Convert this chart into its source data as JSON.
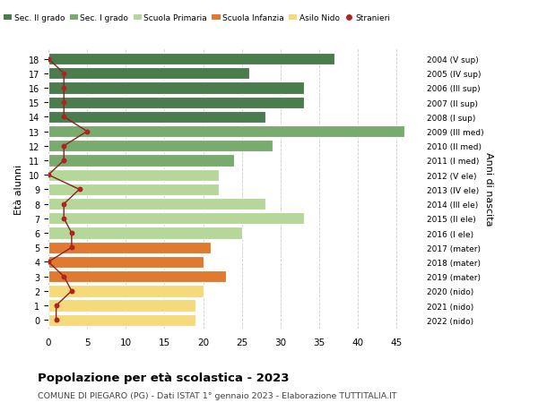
{
  "ages": [
    18,
    17,
    16,
    15,
    14,
    13,
    12,
    11,
    10,
    9,
    8,
    7,
    6,
    5,
    4,
    3,
    2,
    1,
    0
  ],
  "right_labels": [
    "2004 (V sup)",
    "2005 (IV sup)",
    "2006 (III sup)",
    "2007 (II sup)",
    "2008 (I sup)",
    "2009 (III med)",
    "2010 (II med)",
    "2011 (I med)",
    "2012 (V ele)",
    "2013 (IV ele)",
    "2014 (III ele)",
    "2015 (II ele)",
    "2016 (I ele)",
    "2017 (mater)",
    "2018 (mater)",
    "2019 (mater)",
    "2020 (nido)",
    "2021 (nido)",
    "2022 (nido)"
  ],
  "bar_values": [
    37,
    26,
    33,
    33,
    28,
    46,
    29,
    24,
    22,
    22,
    28,
    33,
    25,
    21,
    20,
    23,
    20,
    19,
    19
  ],
  "bar_colors": [
    "#4a7c4e",
    "#4a7c4e",
    "#4a7c4e",
    "#4a7c4e",
    "#4a7c4e",
    "#7aab6e",
    "#7aab6e",
    "#7aab6e",
    "#b5d89a",
    "#b5d89a",
    "#b5d89a",
    "#b5d89a",
    "#b5d89a",
    "#e07a30",
    "#e07a30",
    "#e07a30",
    "#f5d97a",
    "#f5d97a",
    "#f5d97a"
  ],
  "stranieri_values": [
    0,
    2,
    2,
    2,
    2,
    5,
    2,
    2,
    0,
    4,
    2,
    2,
    3,
    3,
    0,
    2,
    3,
    1,
    1
  ],
  "legend_labels": [
    "Sec. II grado",
    "Sec. I grado",
    "Scuola Primaria",
    "Scuola Infanzia",
    "Asilo Nido",
    "Stranieri"
  ],
  "legend_colors": [
    "#4a7c4e",
    "#7aab6e",
    "#b5d89a",
    "#e07a30",
    "#f5d97a",
    "#b22222"
  ],
  "ylabel": "Età alunni",
  "right_ylabel": "Anni di nascita",
  "title": "Popolazione per età scolastica - 2023",
  "subtitle": "COMUNE DI PIEGARO (PG) - Dati ISTAT 1° gennaio 2023 - Elaborazione TUTTITALIA.IT",
  "xlim": [
    0,
    48
  ],
  "xticks": [
    0,
    5,
    10,
    15,
    20,
    25,
    30,
    35,
    40,
    45
  ],
  "bg_color": "#ffffff",
  "grid_color": "#cccccc",
  "stranieri_color": "#b22222",
  "stranieri_line_color": "#8b2020"
}
